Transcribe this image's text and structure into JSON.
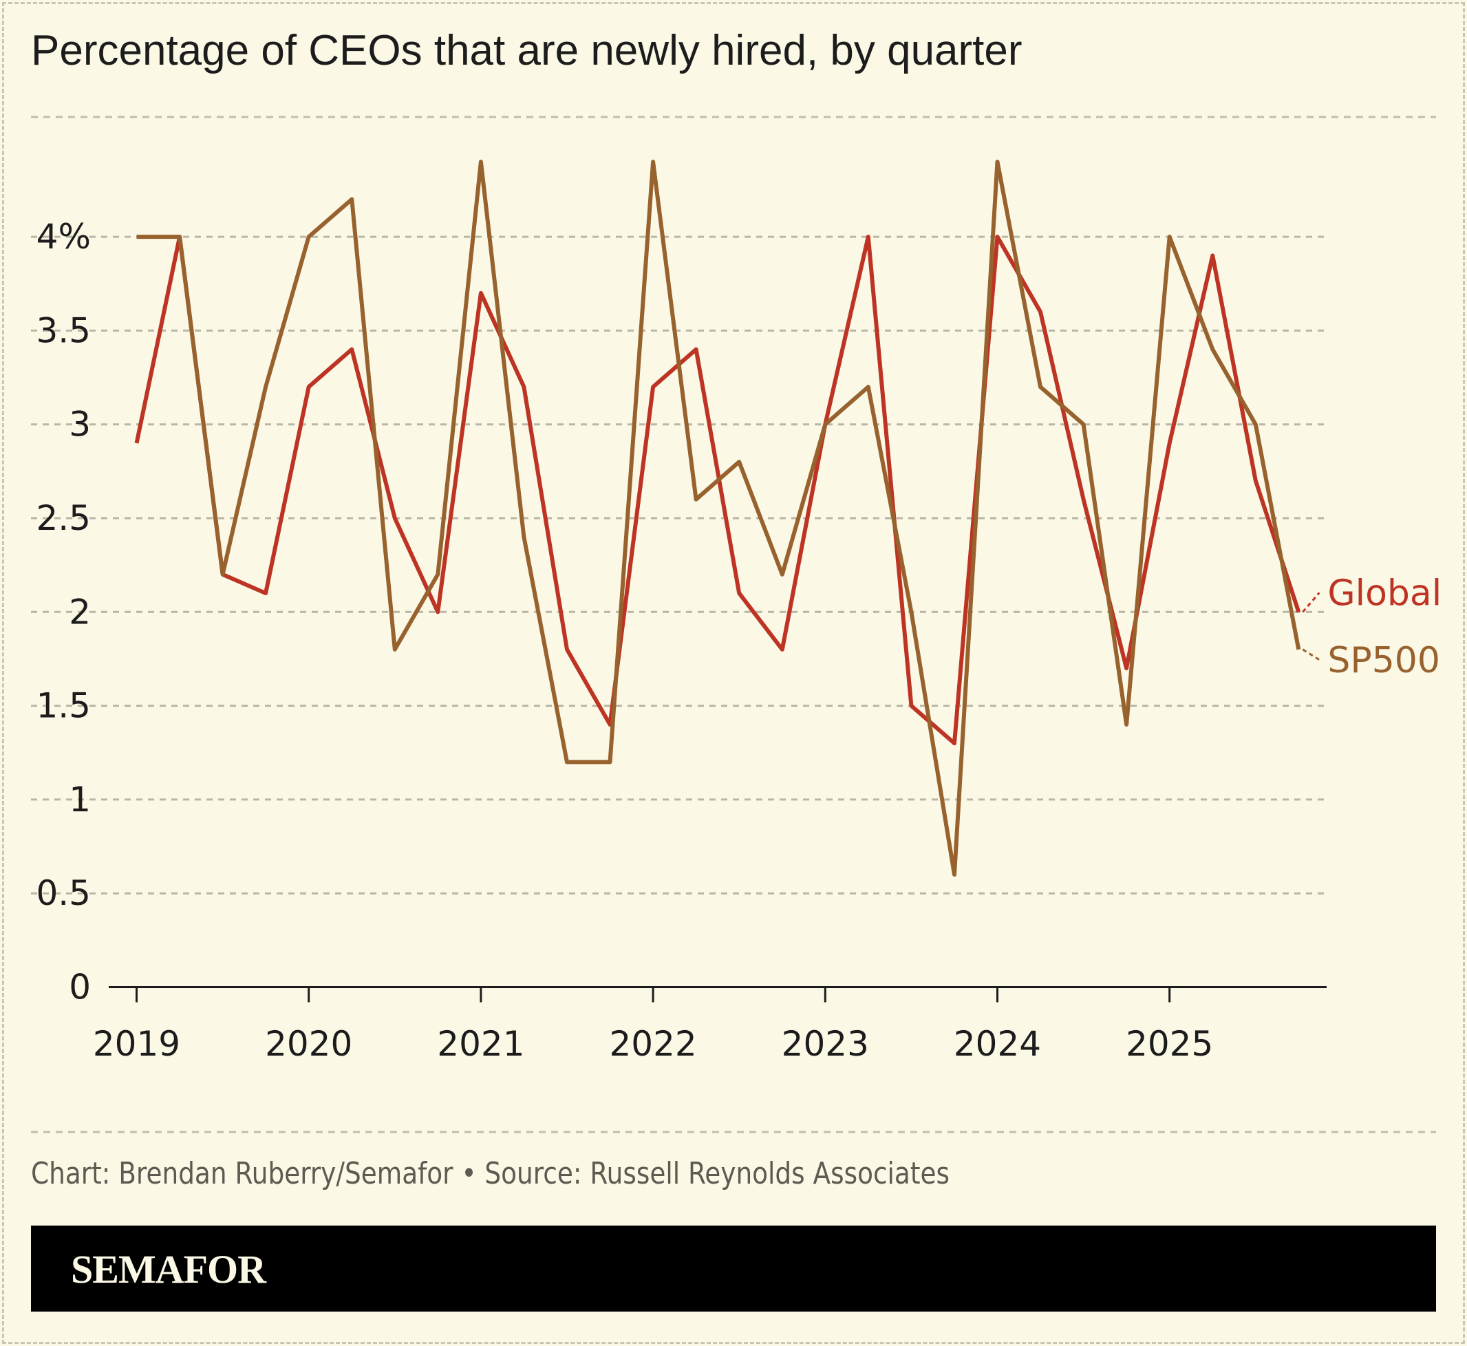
{
  "title": "Percentage of CEOs that are newly hired, by quarter",
  "source": "Chart: Brendan Ruberry/Semafor • Source: Russell Reynolds Associates",
  "brand": "SEMAFOR",
  "chart_data": {
    "type": "line",
    "title": "Percentage of CEOs that are newly hired, by quarter",
    "x": [
      "2019 Q1",
      "2019 Q2",
      "2019 Q3",
      "2019 Q4",
      "2020 Q1",
      "2020 Q2",
      "2020 Q3",
      "2020 Q4",
      "2021 Q1",
      "2021 Q2",
      "2021 Q3",
      "2021 Q4",
      "2022 Q1",
      "2022 Q2",
      "2022 Q3",
      "2022 Q4",
      "2023 Q1",
      "2023 Q2",
      "2023 Q3",
      "2023 Q4",
      "2024 Q1",
      "2024 Q2",
      "2024 Q3",
      "2024 Q4",
      "2025 Q1",
      "2025 Q2",
      "2025 Q3",
      "2025 Q4"
    ],
    "x_tick_labels": [
      "2019",
      "2020",
      "2021",
      "2022",
      "2023",
      "2024",
      "2025"
    ],
    "y_tick_labels": [
      "0",
      "0.5",
      "1",
      "1.5",
      "2",
      "2.5",
      "3",
      "3.5",
      "4%"
    ],
    "ylim": [
      0,
      4.5
    ],
    "grid": true,
    "legend": "end-of-line labels",
    "series": [
      {
        "name": "Global",
        "color": "#be3424",
        "values": [
          2.9,
          4.0,
          2.2,
          2.1,
          3.2,
          3.4,
          2.5,
          2.0,
          3.7,
          3.2,
          1.8,
          1.4,
          3.2,
          3.4,
          2.1,
          1.8,
          3.0,
          4.0,
          1.5,
          1.3,
          4.0,
          3.6,
          2.6,
          1.7,
          2.9,
          3.9,
          2.7,
          2.0
        ]
      },
      {
        "name": "SP500",
        "color": "#97622d",
        "values": [
          4.0,
          4.0,
          2.2,
          3.2,
          4.0,
          4.2,
          1.8,
          2.2,
          4.4,
          2.4,
          1.2,
          1.2,
          4.4,
          2.6,
          2.8,
          2.2,
          3.0,
          3.2,
          2.0,
          0.6,
          4.4,
          3.2,
          3.0,
          1.4,
          4.0,
          3.4,
          3.0,
          1.8
        ]
      }
    ]
  }
}
